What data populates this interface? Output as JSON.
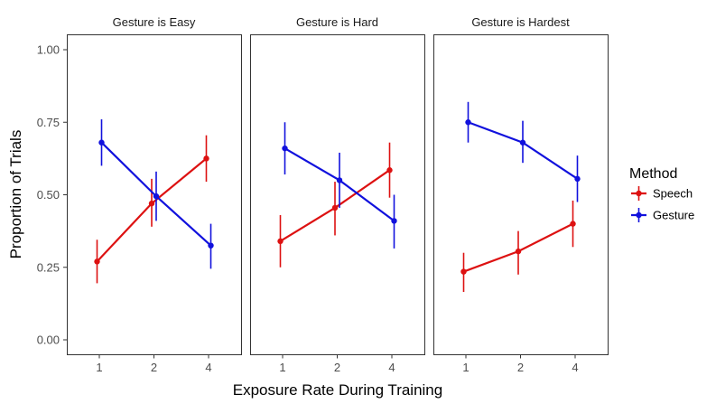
{
  "chart_data": {
    "type": "line",
    "xlabel": "Exposure Rate During Training",
    "ylabel": "Proportion of Trials",
    "x_categories": [
      "1",
      "2",
      "4"
    ],
    "ylim": [
      0,
      1.0
    ],
    "y_ticks": [
      "0.00",
      "0.25",
      "0.50",
      "0.75",
      "1.00"
    ],
    "grid": false,
    "legend": {
      "title": "Method",
      "position": "right",
      "items": [
        {
          "label": "Speech",
          "color": "#dd1111"
        },
        {
          "label": "Gesture",
          "color": "#1111dd"
        }
      ]
    },
    "panels": [
      {
        "title": "Gesture is Easy",
        "series": [
          {
            "name": "Speech",
            "values": [
              0.27,
              0.47,
              0.625
            ],
            "err_low": [
              0.195,
              0.39,
              0.545
            ],
            "err_high": [
              0.345,
              0.555,
              0.705
            ]
          },
          {
            "name": "Gesture",
            "values": [
              0.68,
              0.495,
              0.325
            ],
            "err_low": [
              0.6,
              0.41,
              0.245
            ],
            "err_high": [
              0.76,
              0.58,
              0.4
            ]
          }
        ]
      },
      {
        "title": "Gesture is Hard",
        "series": [
          {
            "name": "Speech",
            "values": [
              0.34,
              0.455,
              0.585
            ],
            "err_low": [
              0.25,
              0.36,
              0.49
            ],
            "err_high": [
              0.43,
              0.545,
              0.68
            ]
          },
          {
            "name": "Gesture",
            "values": [
              0.66,
              0.55,
              0.41
            ],
            "err_low": [
              0.57,
              0.455,
              0.315
            ],
            "err_high": [
              0.75,
              0.645,
              0.5
            ]
          }
        ]
      },
      {
        "title": "Gesture is Hardest",
        "series": [
          {
            "name": "Speech",
            "values": [
              0.235,
              0.305,
              0.4
            ],
            "err_low": [
              0.165,
              0.225,
              0.32
            ],
            "err_high": [
              0.3,
              0.375,
              0.48
            ]
          },
          {
            "name": "Gesture",
            "values": [
              0.75,
              0.68,
              0.555
            ],
            "err_low": [
              0.68,
              0.61,
              0.475
            ],
            "err_high": [
              0.82,
              0.755,
              0.635
            ]
          }
        ]
      }
    ]
  }
}
